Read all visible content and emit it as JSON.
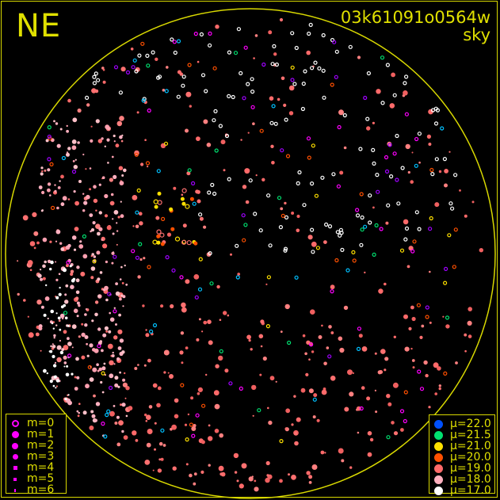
{
  "header": {
    "direction_label": "NE",
    "image_id": "03k61091o0564w",
    "image_type": "sky"
  },
  "colors": {
    "frame": "#d8d800",
    "horizon_circle": "#d8d800",
    "text": "#e0e000",
    "background": "#000000"
  },
  "magnitude_legend": {
    "items": [
      {
        "label": "m=0",
        "style": "ring"
      },
      {
        "label": "m=1",
        "style": "filled"
      },
      {
        "label": "m=2",
        "style": "filled"
      },
      {
        "label": "m=3",
        "style": "filled"
      },
      {
        "label": "m=4",
        "style": "filled"
      },
      {
        "label": "m=5",
        "style": "filled"
      },
      {
        "label": "m=6",
        "style": "filled"
      }
    ],
    "color": "#ff00ff"
  },
  "sky_brightness_legend": {
    "items": [
      {
        "label": "μ=22.0",
        "color": "#0050ff"
      },
      {
        "label": "μ=21.5",
        "color": "#00e070"
      },
      {
        "label": "μ=21.0",
        "color": "#ffe000"
      },
      {
        "label": "μ=20.0",
        "color": "#ff5000"
      },
      {
        "label": "μ=19.0",
        "color": "#ff6a6a"
      },
      {
        "label": "μ=18.0",
        "color": "#ffb0c0"
      },
      {
        "label": "μ=17.0",
        "color": "#ffffff"
      }
    ]
  }
}
